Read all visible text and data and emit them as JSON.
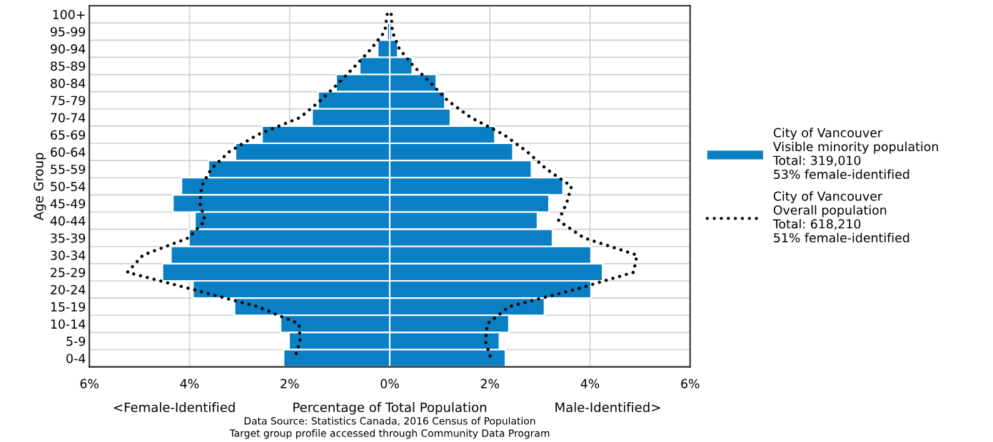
{
  "chart_data": {
    "type": "bar",
    "orientation": "horizontal",
    "stacked": true,
    "ylabel": "Age Group",
    "xlabel": "Percentage of Total Population",
    "categories": [
      "100+",
      "95-99",
      "90-94",
      "85-89",
      "80-84",
      "75-79",
      "70-74",
      "65-69",
      "60-64",
      "55-59",
      "50-54",
      "45-49",
      "40-44",
      "35-39",
      "30-34",
      "25-29",
      "20-24",
      "15-19",
      "10-14",
      "5-9",
      "0-4"
    ],
    "series": [
      {
        "color": "#0a7fc4",
        "values": [
          null,
          -0.05,
          -0.24,
          -0.6,
          -1.07,
          -1.43,
          -1.55,
          -2.55,
          -3.08,
          -3.62,
          -4.16,
          -4.33,
          -3.89,
          -4.01,
          -4.37,
          -4.54,
          -3.93,
          -3.1,
          -2.18,
          -2.01,
          -2.12
        ]
      },
      {
        "name": "City of Vancouver\nVisible minority population\nTotal: 319,010\n53% female-identified",
        "color": "#0a7fc4",
        "values": [
          0.02,
          0.04,
          0.16,
          0.45,
          0.93,
          1.1,
          1.21,
          2.1,
          2.46,
          2.83,
          3.46,
          3.18,
          2.95,
          3.25,
          4.02,
          4.25,
          4.02,
          3.09,
          2.38,
          2.19,
          2.31
        ]
      },
      {
        "type": "line",
        "color": "#000000",
        "line_style": "dotted",
        "values": [
          -0.05,
          -0.1,
          -0.37,
          -0.69,
          -1.02,
          -1.38,
          -1.79,
          -2.64,
          -3.21,
          -3.57,
          -3.76,
          -3.79,
          -3.69,
          -4.02,
          -4.93,
          -5.24,
          -3.93,
          -2.64,
          -1.81,
          -1.79,
          -1.9
        ]
      },
      {
        "type": "line",
        "name": "City of Vancouver\nOverall population\nTotal: 618,210\n51% female-identified",
        "color": "#000000",
        "line_style": "dotted",
        "values": [
          0.03,
          0.05,
          0.19,
          0.47,
          0.82,
          1.15,
          1.62,
          2.28,
          2.75,
          3.13,
          3.63,
          3.53,
          3.37,
          3.88,
          4.94,
          4.87,
          3.7,
          2.38,
          1.95,
          1.91,
          2.02
        ]
      }
    ],
    "xlim": [
      -6,
      6
    ],
    "xticks": [
      {
        "value": -6,
        "label": "6%"
      },
      {
        "value": -4,
        "label": "4%"
      },
      {
        "value": -2,
        "label": "2%"
      },
      {
        "value": 0,
        "label": "0%"
      },
      {
        "value": 2,
        "label": "2%"
      },
      {
        "value": 4,
        "label": "4%"
      },
      {
        "value": 6,
        "label": "6%"
      }
    ],
    "grid": true,
    "legend": "right",
    "marker": "none",
    "annotations": [
      "<Female-Identified",
      "Male-Identified>",
      "Data Source: Statistics Canada, 2016 Census of Population",
      "Target group profile accessed through Community Data Program"
    ]
  }
}
